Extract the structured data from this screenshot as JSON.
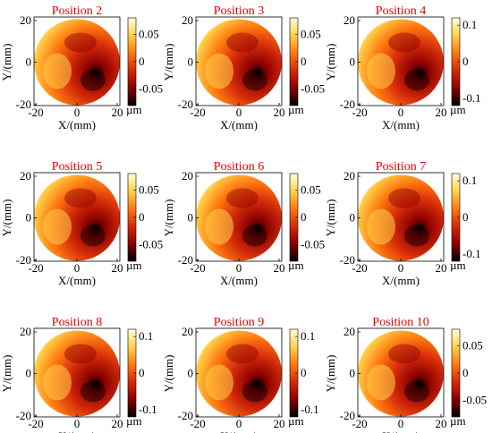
{
  "chart_data": [
    {
      "type": "heatmap",
      "title": "Position 2",
      "xlabel": "X/(mm)",
      "ylabel": "Y/(mm)",
      "x_ticks": [
        "-20",
        "0",
        "20"
      ],
      "y_ticks": [
        "20",
        "0",
        "-20"
      ],
      "colorbar_ticks": [
        "0.05",
        "0",
        "-0.05"
      ],
      "colorbar_unit": "µm",
      "colorbar_range": [
        -0.08,
        0.08
      ],
      "colormap": [
        "#000000",
        "#8b0000",
        "#d42a0a",
        "#ff7a10",
        "#ffd24a",
        "#ffffdc"
      ],
      "title_color": "#e00000"
    },
    {
      "type": "heatmap",
      "title": "Position 3",
      "xlabel": "X/(mm)",
      "ylabel": "Y/(mm)",
      "x_ticks": [
        "-20",
        "0",
        "20"
      ],
      "y_ticks": [
        "20",
        "0",
        "-20"
      ],
      "colorbar_ticks": [
        "0.05",
        "0",
        "-0.05"
      ],
      "colorbar_unit": "µm",
      "colorbar_range": [
        -0.08,
        0.08
      ],
      "colormap": [
        "#000000",
        "#8b0000",
        "#d42a0a",
        "#ff7a10",
        "#ffd24a",
        "#ffffdc"
      ],
      "title_color": "#e00000"
    },
    {
      "type": "heatmap",
      "title": "Position 4",
      "xlabel": "X/(mm)",
      "ylabel": "Y/(mm)",
      "x_ticks": [
        "-20",
        "0",
        "20"
      ],
      "y_ticks": [
        "20",
        "0",
        "-20"
      ],
      "colorbar_ticks": [
        "0.1",
        "0",
        "-0.1"
      ],
      "colorbar_unit": "µm",
      "colorbar_range": [
        -0.12,
        0.12
      ],
      "colormap": [
        "#000000",
        "#8b0000",
        "#d42a0a",
        "#ff7a10",
        "#ffd24a",
        "#ffffdc"
      ],
      "title_color": "#e00000"
    },
    {
      "type": "heatmap",
      "title": "Position 5",
      "xlabel": "X/(mm)",
      "ylabel": "Y/(mm)",
      "x_ticks": [
        "-20",
        "0",
        "20"
      ],
      "y_ticks": [
        "20",
        "0",
        "-20"
      ],
      "colorbar_ticks": [
        "0.05",
        "0",
        "-0.05"
      ],
      "colorbar_unit": "µm",
      "colorbar_range": [
        -0.08,
        0.08
      ],
      "colormap": [
        "#000000",
        "#8b0000",
        "#d42a0a",
        "#ff7a10",
        "#ffd24a",
        "#ffffdc"
      ],
      "title_color": "#e00000"
    },
    {
      "type": "heatmap",
      "title": "Position 6",
      "xlabel": "X/(mm)",
      "ylabel": "Y/(mm)",
      "x_ticks": [
        "-20",
        "0",
        "20"
      ],
      "y_ticks": [
        "20",
        "0",
        "-20"
      ],
      "colorbar_ticks": [
        "0.05",
        "0",
        "-0.05"
      ],
      "colorbar_unit": "µm",
      "colorbar_range": [
        -0.08,
        0.08
      ],
      "colormap": [
        "#000000",
        "#8b0000",
        "#d42a0a",
        "#ff7a10",
        "#ffd24a",
        "#ffffdc"
      ],
      "title_color": "#e00000"
    },
    {
      "type": "heatmap",
      "title": "Position 7",
      "xlabel": "X/(mm)",
      "ylabel": "Y/(mm)",
      "x_ticks": [
        "-20",
        "0",
        "20"
      ],
      "y_ticks": [
        "20",
        "0",
        "-20"
      ],
      "colorbar_ticks": [
        "0.1",
        "0",
        "-0.1"
      ],
      "colorbar_unit": "µm",
      "colorbar_range": [
        -0.12,
        0.12
      ],
      "colormap": [
        "#000000",
        "#8b0000",
        "#d42a0a",
        "#ff7a10",
        "#ffd24a",
        "#ffffdc"
      ],
      "title_color": "#e00000"
    },
    {
      "type": "heatmap",
      "title": "Position 8",
      "xlabel": "X/(mm)",
      "ylabel": "Y/(mm)",
      "x_ticks": [
        "-20",
        "0",
        "20"
      ],
      "y_ticks": [
        "20",
        "0",
        "-20"
      ],
      "colorbar_ticks": [
        "0.1",
        "0",
        "-0.1"
      ],
      "colorbar_unit": "µm",
      "colorbar_range": [
        -0.12,
        0.12
      ],
      "colormap": [
        "#000000",
        "#8b0000",
        "#d42a0a",
        "#ff7a10",
        "#ffd24a",
        "#ffffdc"
      ],
      "title_color": "#e00000"
    },
    {
      "type": "heatmap",
      "title": "Position 9",
      "xlabel": "X/(mm)",
      "ylabel": "Y/(mm)",
      "x_ticks": [
        "-20",
        "0",
        "20"
      ],
      "y_ticks": [
        "20",
        "0",
        "-20"
      ],
      "colorbar_ticks": [
        "0.1",
        "0",
        "-0.1"
      ],
      "colorbar_unit": "µm",
      "colorbar_range": [
        -0.12,
        0.12
      ],
      "colormap": [
        "#000000",
        "#8b0000",
        "#d42a0a",
        "#ff7a10",
        "#ffd24a",
        "#ffffdc"
      ],
      "title_color": "#e00000"
    },
    {
      "type": "heatmap",
      "title": "Position 10",
      "xlabel": "X/(mm)",
      "ylabel": "Y/(mm)",
      "x_ticks": [
        "-20",
        "0",
        "20"
      ],
      "y_ticks": [
        "20",
        "0",
        "-20"
      ],
      "colorbar_ticks": [
        "0.05",
        "0",
        "-0.05"
      ],
      "colorbar_unit": "µm",
      "colorbar_range": [
        -0.08,
        0.08
      ],
      "colormap": [
        "#000000",
        "#8b0000",
        "#d42a0a",
        "#ff7a10",
        "#ffd24a",
        "#ffffdc"
      ],
      "title_color": "#e00000"
    }
  ]
}
